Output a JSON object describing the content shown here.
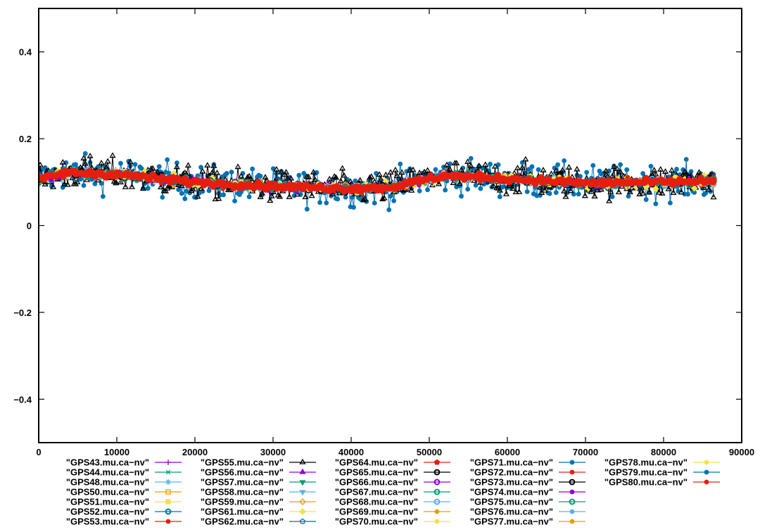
{
  "chart_data": {
    "type": "line",
    "title": "",
    "xlabel": "",
    "ylabel": "",
    "xlim": [
      0,
      90000
    ],
    "ylim": [
      -0.5,
      0.5
    ],
    "x_ticks": [
      0,
      10000,
      20000,
      30000,
      40000,
      50000,
      60000,
      70000,
      80000,
      90000
    ],
    "y_ticks": [
      -0.4,
      -0.2,
      0,
      0.2,
      0.4
    ],
    "x_tick_labels": [
      "0",
      "10000",
      "20000",
      "30000",
      "40000",
      "50000",
      "60000",
      "70000",
      "80000",
      "90000"
    ],
    "y_tick_labels": [
      "−0.4",
      "−0.2",
      "0",
      "0.2",
      "0.4"
    ],
    "grid": false,
    "legend_position": "bottom",
    "x_range_of_data": [
      0,
      86400
    ],
    "trend_x": [
      0,
      3500,
      10000,
      20000,
      30000,
      40000,
      45000,
      52000,
      60000,
      70000,
      80000,
      86400
    ],
    "trend_y": [
      0.105,
      0.122,
      0.118,
      0.1,
      0.09,
      0.085,
      0.088,
      0.115,
      0.108,
      0.098,
      0.1,
      0.103
    ],
    "series": [
      {
        "name": "\"GPS43.mu.ca−nv\"",
        "color": "#9400d3",
        "marker": "plus",
        "spread": 0.006
      },
      {
        "name": "\"GPS44.mu.ca−nv\"",
        "color": "#009e73",
        "marker": "cross",
        "spread": 0.006
      },
      {
        "name": "\"GPS48.mu.ca−nv\"",
        "color": "#56b4e9",
        "marker": "star",
        "spread": 0.006
      },
      {
        "name": "\"GPS50.mu.ca−nv\"",
        "color": "#e69f00",
        "marker": "open-square",
        "spread": 0.006
      },
      {
        "name": "\"GPS51.mu.ca−nv\"",
        "color": "#f0e442",
        "marker": "filled-square",
        "spread": 0.007
      },
      {
        "name": "\"GPS52.mu.ca−nv\"",
        "color": "#0072b2",
        "marker": "open-circle",
        "spread": 0.007
      },
      {
        "name": "\"GPS53.mu.ca−nv\"",
        "color": "#e51e10",
        "marker": "filled-circle",
        "spread": 0.006
      },
      {
        "name": "\"GPS55.mu.ca−nv\"",
        "color": "#000000",
        "marker": "open-triangle",
        "spread": 0.026
      },
      {
        "name": "\"GPS56.mu.ca−nv\"",
        "color": "#9400d3",
        "marker": "filled-triangle",
        "spread": 0.008
      },
      {
        "name": "\"GPS57.mu.ca−nv\"",
        "color": "#009e73",
        "marker": "filled-triangle-down",
        "spread": 0.006
      },
      {
        "name": "\"GPS58.mu.ca−nv\"",
        "color": "#56b4e9",
        "marker": "filled-triangle-down",
        "spread": 0.006
      },
      {
        "name": "\"GPS59.mu.ca−nv\"",
        "color": "#e69f00",
        "marker": "open-diamond",
        "spread": 0.006
      },
      {
        "name": "\"GPS61.mu.ca−nv\"",
        "color": "#f0e442",
        "marker": "filled-diamond",
        "spread": 0.009
      },
      {
        "name": "\"GPS62.mu.ca−nv\"",
        "color": "#0072b2",
        "marker": "open-pentagon",
        "spread": 0.007
      },
      {
        "name": "\"GPS64.mu.ca−nv\"",
        "color": "#e51e10",
        "marker": "filled-pentagon",
        "spread": 0.006
      },
      {
        "name": "\"GPS65.mu.ca−nv\"",
        "color": "#000000",
        "marker": "open-circle",
        "spread": 0.006
      },
      {
        "name": "\"GPS66.mu.ca−nv\"",
        "color": "#9400d3",
        "marker": "open-circle",
        "spread": 0.006
      },
      {
        "name": "\"GPS67.mu.ca−nv\"",
        "color": "#009e73",
        "marker": "open-circle",
        "spread": 0.006
      },
      {
        "name": "\"GPS68.mu.ca−nv\"",
        "color": "#56b4e9",
        "marker": "open-circle",
        "spread": 0.006
      },
      {
        "name": "\"GPS69.mu.ca−nv\"",
        "color": "#e69f00",
        "marker": "filled-circle",
        "spread": 0.006
      },
      {
        "name": "\"GPS70.mu.ca−nv\"",
        "color": "#f0e442",
        "marker": "filled-circle",
        "spread": 0.008
      },
      {
        "name": "\"GPS71.mu.ca−nv\"",
        "color": "#0072b2",
        "marker": "filled-circle",
        "spread": 0.028
      },
      {
        "name": "\"GPS72.mu.ca−nv\"",
        "color": "#e51e10",
        "marker": "filled-circle",
        "spread": 0.006
      },
      {
        "name": "\"GPS73.mu.ca−nv\"",
        "color": "#000000",
        "marker": "open-circle",
        "spread": 0.006
      },
      {
        "name": "\"GPS74.mu.ca−nv\"",
        "color": "#9400d3",
        "marker": "filled-circle",
        "spread": 0.006
      },
      {
        "name": "\"GPS75.mu.ca−nv\"",
        "color": "#009e73",
        "marker": "open-circle",
        "spread": 0.006
      },
      {
        "name": "\"GPS76.mu.ca−nv\"",
        "color": "#56b4e9",
        "marker": "filled-circle",
        "spread": 0.006
      },
      {
        "name": "\"GPS77.mu.ca−nv\"",
        "color": "#e69f00",
        "marker": "filled-circle",
        "spread": 0.006
      },
      {
        "name": "\"GPS78.mu.ca−nv\"",
        "color": "#f0e442",
        "marker": "filled-circle",
        "spread": 0.006
      },
      {
        "name": "\"GPS79.mu.ca−nv\"",
        "color": "#0072b2",
        "marker": "filled-circle",
        "spread": 0.006
      },
      {
        "name": "\"GPS80.mu.ca−nv\"",
        "color": "#e51e10",
        "marker": "filled-circle",
        "spread": 0.005
      }
    ]
  }
}
